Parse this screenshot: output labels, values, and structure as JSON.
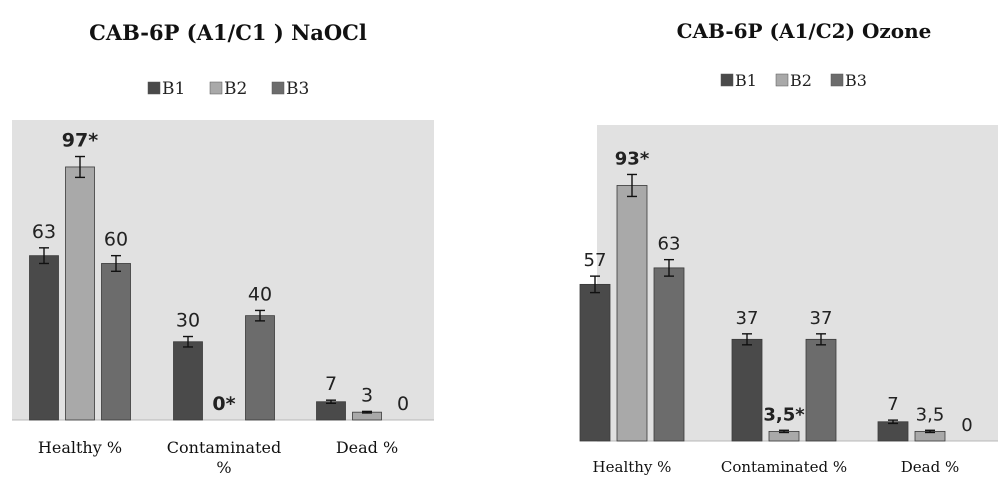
{
  "chart_data": [
    {
      "type": "bar",
      "title": "CAB-6P  (A1/C1 ) NaOCl",
      "categories": [
        "Healthy %",
        "Contaminated %",
        "Dead %"
      ],
      "series": [
        {
          "name": "B1",
          "values": [
            63,
            30,
            7
          ],
          "errors": [
            3,
            2,
            0.6
          ],
          "labels": [
            "63",
            "30",
            "7"
          ],
          "bold": [
            false,
            false,
            false
          ],
          "color": "#4a4a4a"
        },
        {
          "name": "B2",
          "values": [
            97,
            0,
            3
          ],
          "errors": [
            4,
            0,
            0.3
          ],
          "labels": [
            "97*",
            "0*",
            "3"
          ],
          "bold": [
            true,
            true,
            false
          ],
          "color": "#a9a9a9"
        },
        {
          "name": "B3",
          "values": [
            60,
            40,
            0
          ],
          "errors": [
            3,
            2,
            0
          ],
          "labels": [
            "60",
            "40",
            "0"
          ],
          "bold": [
            false,
            false,
            false
          ],
          "color": "#6c6c6c"
        }
      ],
      "ylim": [
        0,
        115
      ],
      "legend": "top",
      "grid": false
    },
    {
      "type": "bar",
      "title": "CAB-6P (A1/C2) Ozone",
      "categories": [
        "Healthy %",
        "Contaminated %",
        "Dead %"
      ],
      "series": [
        {
          "name": "B1",
          "values": [
            57,
            37,
            7
          ],
          "errors": [
            3,
            2,
            0.6
          ],
          "labels": [
            "57",
            "37",
            "7"
          ],
          "bold": [
            false,
            false,
            false
          ],
          "color": "#4a4a4a"
        },
        {
          "name": "B2",
          "values": [
            93,
            3.5,
            3.5
          ],
          "errors": [
            4,
            0.4,
            0.4
          ],
          "labels": [
            "93*",
            "3,5*",
            "3,5"
          ],
          "bold": [
            true,
            true,
            false
          ],
          "color": "#a9a9a9"
        },
        {
          "name": "B3",
          "values": [
            63,
            37,
            0
          ],
          "errors": [
            3,
            2,
            0
          ],
          "labels": [
            "63",
            "37",
            "0"
          ],
          "bold": [
            false,
            false,
            false
          ],
          "color": "#6c6c6c"
        }
      ],
      "ylim": [
        0,
        115
      ],
      "legend": "top",
      "grid": false
    }
  ]
}
